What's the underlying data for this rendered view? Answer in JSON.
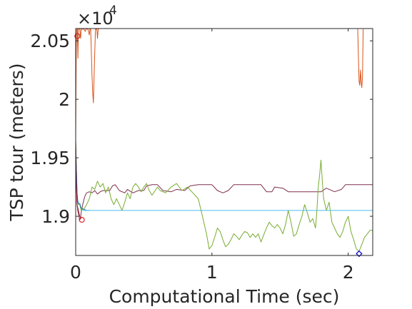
{
  "chart_data": {
    "type": "line",
    "title": "",
    "xlabel": "Computational Time (sec)",
    "ylabel": "TSP tour (meters)",
    "exponent_base": "×10",
    "exponent_power": "4",
    "xlim": [
      0,
      2.18
    ],
    "ylim": [
      1.8665,
      2.0605
    ],
    "xticks": [
      0,
      1,
      2
    ],
    "xtick_labels": [
      "0",
      "1",
      "2"
    ],
    "yticks": [
      1.9,
      1.95,
      2.0,
      2.05
    ],
    "ytick_labels": [
      "1.9",
      "1.95",
      "2",
      "2.05"
    ],
    "grid": false,
    "legend": "none",
    "series": [
      {
        "color": "#d95319",
        "points": [
          [
            0.0,
            1.965
          ],
          [
            0.004,
            2.045
          ],
          [
            0.008,
            2.06
          ],
          [
            0.012,
            2.06
          ],
          [
            0.016,
            2.035
          ],
          [
            0.02,
            2.06
          ],
          [
            0.026,
            2.06
          ],
          [
            0.03,
            2.06
          ],
          [
            0.036,
            2.052
          ],
          [
            0.04,
            2.06
          ],
          [
            0.044,
            2.06
          ],
          [
            0.05,
            2.06
          ],
          [
            0.06,
            2.06
          ],
          [
            0.07,
            2.058
          ],
          [
            0.075,
            2.06
          ],
          [
            0.08,
            2.06
          ],
          [
            0.09,
            2.06
          ],
          [
            0.1,
            2.055
          ],
          [
            0.105,
            2.06
          ],
          [
            0.11,
            2.06
          ],
          [
            0.12,
            2.02
          ],
          [
            0.125,
            2.005
          ],
          [
            0.13,
            1.997
          ],
          [
            0.135,
            2.02
          ],
          [
            0.14,
            2.04
          ],
          [
            0.145,
            2.06
          ],
          [
            0.15,
            2.06
          ],
          [
            0.155,
            2.06
          ],
          [
            0.16,
            2.052
          ],
          [
            0.165,
            2.06
          ],
          [
            0.17,
            2.06
          ]
        ],
        "points_b": [
          [
            2.07,
            2.06
          ],
          [
            2.075,
            2.035
          ],
          [
            2.08,
            2.015
          ],
          [
            2.085,
            2.012
          ],
          [
            2.09,
            2.025
          ],
          [
            2.095,
            2.015
          ],
          [
            2.1,
            2.01
          ],
          [
            2.105,
            2.02
          ],
          [
            2.11,
            2.06
          ]
        ]
      },
      {
        "color": "#7e2f4e",
        "points": [
          [
            0.0,
            1.965
          ],
          [
            0.005,
            1.93
          ],
          [
            0.01,
            1.91
          ],
          [
            0.015,
            1.905
          ],
          [
            0.02,
            1.902
          ],
          [
            0.025,
            1.899
          ],
          [
            0.03,
            1.897
          ],
          [
            0.035,
            1.898
          ],
          [
            0.04,
            1.903
          ],
          [
            0.05,
            1.909
          ],
          [
            0.06,
            1.914
          ],
          [
            0.07,
            1.918
          ],
          [
            0.08,
            1.92
          ],
          [
            0.1,
            1.921
          ],
          [
            0.12,
            1.92
          ],
          [
            0.14,
            1.922
          ],
          [
            0.16,
            1.919
          ],
          [
            0.18,
            1.921
          ],
          [
            0.2,
            1.922
          ],
          [
            0.25,
            1.922
          ],
          [
            0.27,
            1.926
          ],
          [
            0.29,
            1.927
          ],
          [
            0.32,
            1.922
          ],
          [
            0.36,
            1.92
          ],
          [
            0.38,
            1.923
          ],
          [
            0.42,
            1.92
          ],
          [
            0.46,
            1.922
          ],
          [
            0.5,
            1.922
          ],
          [
            0.52,
            1.926
          ],
          [
            0.56,
            1.927
          ],
          [
            0.6,
            1.927
          ],
          [
            0.64,
            1.922
          ],
          [
            0.7,
            1.921
          ],
          [
            0.74,
            1.923
          ],
          [
            0.8,
            1.922
          ],
          [
            0.84,
            1.926
          ],
          [
            0.9,
            1.927
          ],
          [
            1.0,
            1.927
          ],
          [
            1.04,
            1.922
          ],
          [
            1.08,
            1.92
          ],
          [
            1.12,
            1.922
          ],
          [
            1.16,
            1.927
          ],
          [
            1.3,
            1.927
          ],
          [
            1.36,
            1.927
          ],
          [
            1.4,
            1.921
          ],
          [
            1.44,
            1.921
          ],
          [
            1.46,
            1.925
          ],
          [
            1.52,
            1.924
          ],
          [
            1.56,
            1.921
          ],
          [
            1.6,
            1.921
          ],
          [
            1.7,
            1.921
          ],
          [
            1.8,
            1.921
          ],
          [
            1.84,
            1.924
          ],
          [
            1.9,
            1.921
          ],
          [
            1.95,
            1.923
          ],
          [
            1.98,
            1.927
          ],
          [
            2.18,
            1.927
          ]
        ]
      },
      {
        "color": "#77ac30",
        "points": [
          [
            0.0,
            1.965
          ],
          [
            0.005,
            1.94
          ],
          [
            0.01,
            1.92
          ],
          [
            0.015,
            1.912
          ],
          [
            0.02,
            1.91
          ],
          [
            0.03,
            1.91
          ],
          [
            0.04,
            1.905
          ],
          [
            0.05,
            1.906
          ],
          [
            0.06,
            1.906
          ],
          [
            0.08,
            1.91
          ],
          [
            0.1,
            1.915
          ],
          [
            0.12,
            1.925
          ],
          [
            0.14,
            1.923
          ],
          [
            0.16,
            1.93
          ],
          [
            0.18,
            1.925
          ],
          [
            0.2,
            1.928
          ],
          [
            0.22,
            1.92
          ],
          [
            0.24,
            1.925
          ],
          [
            0.26,
            1.915
          ],
          [
            0.28,
            1.91
          ],
          [
            0.3,
            1.915
          ],
          [
            0.32,
            1.91
          ],
          [
            0.34,
            1.905
          ],
          [
            0.36,
            1.912
          ],
          [
            0.38,
            1.92
          ],
          [
            0.4,
            1.915
          ],
          [
            0.42,
            1.925
          ],
          [
            0.44,
            1.928
          ],
          [
            0.46,
            1.925
          ],
          [
            0.48,
            1.921
          ],
          [
            0.5,
            1.925
          ],
          [
            0.52,
            1.928
          ],
          [
            0.54,
            1.922
          ],
          [
            0.56,
            1.918
          ],
          [
            0.6,
            1.925
          ],
          [
            0.62,
            1.922
          ],
          [
            0.66,
            1.92
          ],
          [
            0.7,
            1.925
          ],
          [
            0.74,
            1.928
          ],
          [
            0.78,
            1.922
          ],
          [
            0.82,
            1.925
          ],
          [
            0.86,
            1.92
          ],
          [
            0.9,
            1.915
          ],
          [
            0.92,
            1.905
          ],
          [
            0.94,
            1.895
          ],
          [
            0.96,
            1.885
          ],
          [
            0.98,
            1.872
          ],
          [
            1.0,
            1.875
          ],
          [
            1.02,
            1.882
          ],
          [
            1.04,
            1.89
          ],
          [
            1.06,
            1.887
          ],
          [
            1.08,
            1.88
          ],
          [
            1.1,
            1.874
          ],
          [
            1.12,
            1.876
          ],
          [
            1.14,
            1.88
          ],
          [
            1.16,
            1.885
          ],
          [
            1.18,
            1.883
          ],
          [
            1.2,
            1.88
          ],
          [
            1.22,
            1.884
          ],
          [
            1.24,
            1.887
          ],
          [
            1.26,
            1.886
          ],
          [
            1.28,
            1.882
          ],
          [
            1.3,
            1.885
          ],
          [
            1.32,
            1.882
          ],
          [
            1.34,
            1.885
          ],
          [
            1.36,
            1.878
          ],
          [
            1.38,
            1.884
          ],
          [
            1.4,
            1.89
          ],
          [
            1.42,
            1.895
          ],
          [
            1.44,
            1.892
          ],
          [
            1.46,
            1.89
          ],
          [
            1.48,
            1.893
          ],
          [
            1.5,
            1.89
          ],
          [
            1.52,
            1.885
          ],
          [
            1.54,
            1.893
          ],
          [
            1.56,
            1.905
          ],
          [
            1.58,
            1.895
          ],
          [
            1.6,
            1.883
          ],
          [
            1.62,
            1.885
          ],
          [
            1.64,
            1.893
          ],
          [
            1.66,
            1.9
          ],
          [
            1.68,
            1.91
          ],
          [
            1.7,
            1.903
          ],
          [
            1.72,
            1.895
          ],
          [
            1.74,
            1.898
          ],
          [
            1.76,
            1.89
          ],
          [
            1.77,
            1.905
          ],
          [
            1.78,
            1.925
          ],
          [
            1.79,
            1.935
          ],
          [
            1.8,
            1.948
          ],
          [
            1.81,
            1.93
          ],
          [
            1.82,
            1.915
          ],
          [
            1.84,
            1.905
          ],
          [
            1.86,
            1.912
          ],
          [
            1.88,
            1.895
          ],
          [
            1.9,
            1.89
          ],
          [
            1.92,
            1.885
          ],
          [
            1.94,
            1.882
          ],
          [
            1.96,
            1.887
          ],
          [
            1.98,
            1.895
          ],
          [
            2.0,
            1.9
          ],
          [
            2.02,
            1.887
          ],
          [
            2.04,
            1.88
          ],
          [
            2.06,
            1.872
          ],
          [
            2.08,
            1.87
          ],
          [
            2.1,
            1.876
          ],
          [
            2.12,
            1.882
          ],
          [
            2.14,
            1.885
          ],
          [
            2.16,
            1.888
          ],
          [
            2.18,
            1.888
          ]
        ]
      },
      {
        "color": "#0072bd",
        "points": [
          [
            0.0,
            1.96
          ],
          [
            0.005,
            1.94
          ],
          [
            0.01,
            1.92
          ],
          [
            0.015,
            1.913
          ],
          [
            0.02,
            1.911
          ],
          [
            0.03,
            1.911
          ],
          [
            0.04,
            1.907
          ],
          [
            0.06,
            1.906
          ],
          [
            0.08,
            1.905
          ],
          [
            0.1,
            1.905
          ]
        ]
      },
      {
        "color": "#4dbeee",
        "points": [
          [
            0.05,
            1.905
          ],
          [
            0.1,
            1.905
          ],
          [
            0.5,
            1.905
          ],
          [
            1.0,
            1.905
          ],
          [
            1.5,
            1.905
          ],
          [
            2.0,
            1.905
          ],
          [
            2.18,
            1.905
          ]
        ]
      },
      {
        "color": "#a2142f",
        "points": [
          [
            0.0,
            1.965
          ],
          [
            0.005,
            1.925
          ],
          [
            0.01,
            1.91
          ],
          [
            0.02,
            1.905
          ],
          [
            0.03,
            1.9
          ],
          [
            0.04,
            1.898
          ]
        ]
      }
    ],
    "markers": [
      {
        "shape": "circle",
        "color": "#d62728",
        "x": 0.012,
        "y": 2.054
      },
      {
        "shape": "circle",
        "color": "#d62728",
        "x": 0.045,
        "y": 1.897
      },
      {
        "shape": "diamond",
        "color": "#0000cc",
        "x": 2.08,
        "y": 1.868
      }
    ]
  }
}
